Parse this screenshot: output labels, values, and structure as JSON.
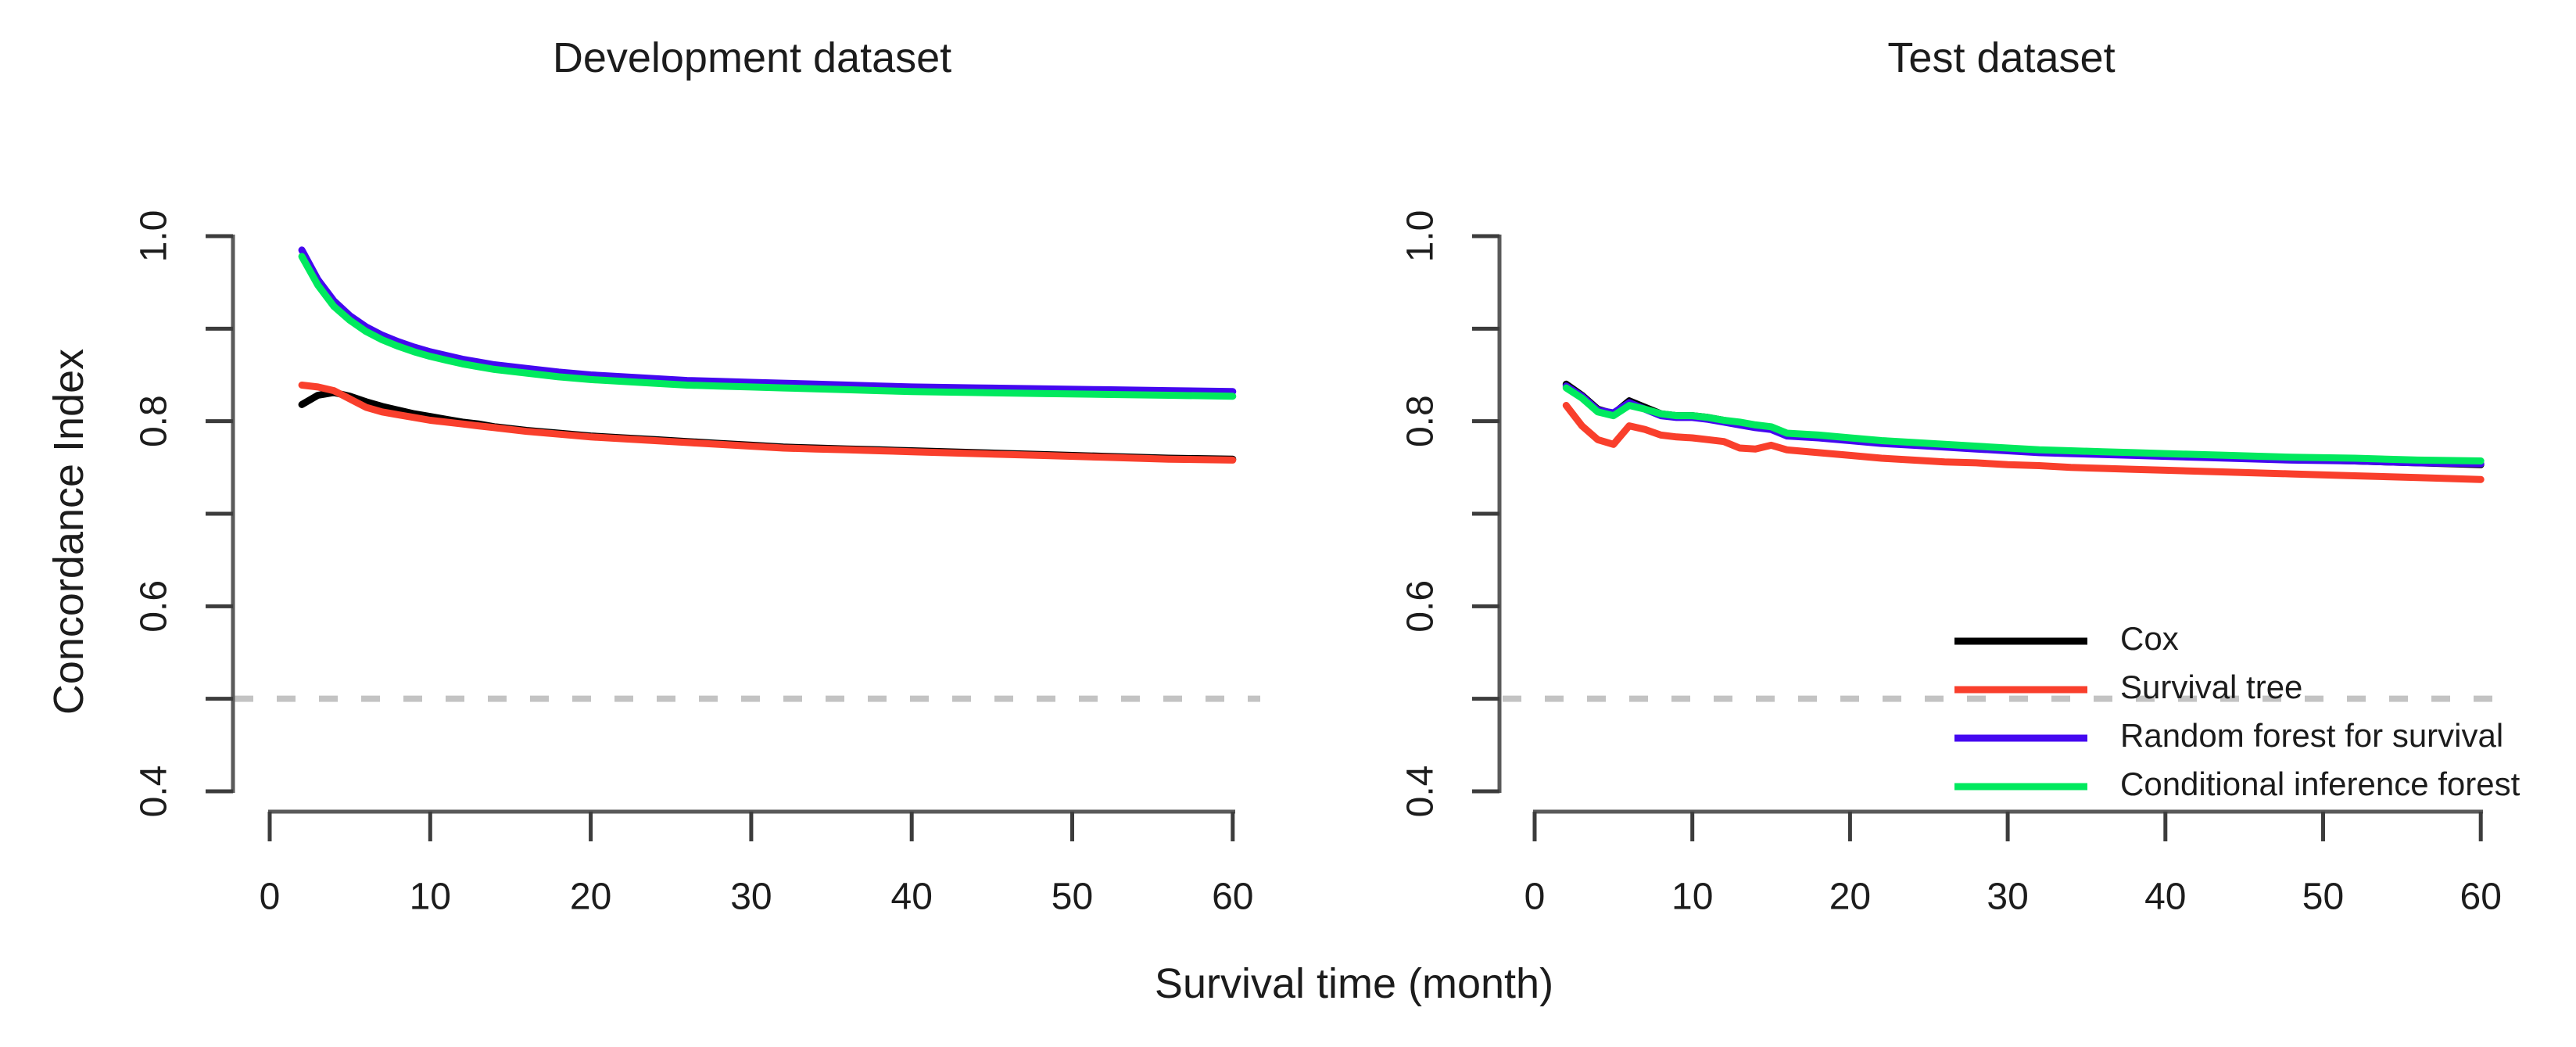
{
  "colors": {
    "background": "#ffffff",
    "text": "#1c1c1c",
    "axis": "#5a5a5a",
    "tick": "#3c3c3c",
    "reference": "#c3c3c3"
  },
  "titles": {
    "left": "Development dataset",
    "right": "Test dataset"
  },
  "axis_labels": {
    "x": "Survival time (month)",
    "y": "Concordance Index"
  },
  "legend": {
    "position": "bottom-right-of-test-panel",
    "items": [
      {
        "label": "Cox",
        "color": "#000000"
      },
      {
        "label": "Survival tree",
        "color": "#f93f2c"
      },
      {
        "label": "Random forest for survival",
        "color": "#4408f0"
      },
      {
        "label": "Conditional inference forest",
        "color": "#00e95e"
      }
    ]
  },
  "chart_data": [
    {
      "type": "line",
      "title": "Development dataset",
      "xlabel": "Survival time (month)",
      "ylabel": "Concordance Index",
      "xlim": [
        0,
        60
      ],
      "ylim": [
        0.4,
        1.0
      ],
      "x_ticks": [
        0,
        10,
        20,
        30,
        40,
        50,
        60
      ],
      "y_ticks": [
        0.4,
        0.5,
        0.6,
        0.7,
        0.8,
        0.9,
        1.0
      ],
      "y_tick_labels": [
        0.4,
        0.6,
        0.8,
        1.0
      ],
      "grid": false,
      "legend_shown": false,
      "reference_line": {
        "y": 0.5,
        "style": "dashed",
        "color": "#c3c3c3"
      },
      "x": [
        2,
        3,
        4,
        5,
        6,
        7,
        8,
        9,
        10,
        11,
        12,
        13,
        14,
        15,
        16,
        18,
        20,
        22,
        24,
        26,
        28,
        30,
        32,
        34,
        36,
        38,
        40,
        44,
        48,
        52,
        56,
        60
      ],
      "series": [
        {
          "name": "Cox",
          "color": "#000000",
          "values": [
            0.818,
            0.828,
            0.831,
            0.827,
            0.821,
            0.816,
            0.812,
            0.808,
            0.805,
            0.802,
            0.799,
            0.797,
            0.794,
            0.792,
            0.79,
            0.787,
            0.784,
            0.782,
            0.78,
            0.778,
            0.776,
            0.774,
            0.772,
            0.771,
            0.77,
            0.769,
            0.768,
            0.766,
            0.764,
            0.762,
            0.76,
            0.759
          ]
        },
        {
          "name": "Survival tree",
          "color": "#f93f2c",
          "values": [
            0.839,
            0.837,
            0.833,
            0.824,
            0.815,
            0.81,
            0.807,
            0.804,
            0.801,
            0.799,
            0.797,
            0.795,
            0.793,
            0.791,
            0.789,
            0.786,
            0.783,
            0.781,
            0.779,
            0.777,
            0.775,
            0.773,
            0.771,
            0.77,
            0.769,
            0.768,
            0.767,
            0.765,
            0.763,
            0.761,
            0.759,
            0.758
          ]
        },
        {
          "name": "Random forest for survival",
          "color": "#4408f0",
          "values": [
            0.985,
            0.953,
            0.93,
            0.914,
            0.902,
            0.893,
            0.886,
            0.88,
            0.875,
            0.871,
            0.867,
            0.864,
            0.861,
            0.859,
            0.857,
            0.853,
            0.85,
            0.848,
            0.846,
            0.844,
            0.843,
            0.842,
            0.841,
            0.84,
            0.839,
            0.838,
            0.837,
            0.836,
            0.835,
            0.834,
            0.833,
            0.832
          ]
        },
        {
          "name": "Conditional inference forest",
          "color": "#00e95e",
          "values": [
            0.978,
            0.947,
            0.924,
            0.909,
            0.897,
            0.888,
            0.881,
            0.875,
            0.87,
            0.866,
            0.862,
            0.859,
            0.856,
            0.854,
            0.852,
            0.848,
            0.845,
            0.843,
            0.841,
            0.839,
            0.838,
            0.837,
            0.836,
            0.835,
            0.834,
            0.833,
            0.832,
            0.831,
            0.83,
            0.829,
            0.828,
            0.827
          ]
        }
      ]
    },
    {
      "type": "line",
      "title": "Test dataset",
      "xlabel": "Survival time (month)",
      "ylabel": "Concordance Index",
      "xlim": [
        0,
        60
      ],
      "ylim": [
        0.4,
        1.0
      ],
      "x_ticks": [
        0,
        10,
        20,
        30,
        40,
        50,
        60
      ],
      "y_ticks": [
        0.4,
        0.5,
        0.6,
        0.7,
        0.8,
        0.9,
        1.0
      ],
      "y_tick_labels": [
        0.4,
        0.6,
        0.8,
        1.0
      ],
      "grid": false,
      "legend_shown": true,
      "reference_line": {
        "y": 0.5,
        "style": "dashed",
        "color": "#c3c3c3"
      },
      "x": [
        2,
        3,
        4,
        5,
        6,
        7,
        8,
        9,
        10,
        11,
        12,
        13,
        14,
        15,
        16,
        18,
        20,
        22,
        24,
        26,
        28,
        30,
        32,
        34,
        36,
        38,
        40,
        44,
        48,
        52,
        56,
        60
      ],
      "series": [
        {
          "name": "Cox",
          "color": "#000000",
          "values": [
            0.84,
            0.828,
            0.813,
            0.808,
            0.822,
            0.815,
            0.808,
            0.806,
            0.806,
            0.804,
            0.801,
            0.798,
            0.795,
            0.793,
            0.786,
            0.784,
            0.781,
            0.778,
            0.776,
            0.773,
            0.771,
            0.77,
            0.768,
            0.767,
            0.766,
            0.764,
            0.763,
            0.761,
            0.759,
            0.757,
            0.755,
            0.753
          ]
        },
        {
          "name": "Survival tree",
          "color": "#f93f2c",
          "values": [
            0.817,
            0.795,
            0.78,
            0.775,
            0.795,
            0.791,
            0.785,
            0.783,
            0.782,
            0.78,
            0.778,
            0.771,
            0.77,
            0.774,
            0.769,
            0.766,
            0.763,
            0.76,
            0.758,
            0.756,
            0.755,
            0.753,
            0.752,
            0.75,
            0.749,
            0.748,
            0.747,
            0.745,
            0.743,
            0.741,
            0.739,
            0.737
          ]
        },
        {
          "name": "Random forest for survival",
          "color": "#4408f0",
          "values": [
            0.838,
            0.827,
            0.812,
            0.809,
            0.82,
            0.813,
            0.806,
            0.804,
            0.804,
            0.802,
            0.799,
            0.796,
            0.793,
            0.791,
            0.784,
            0.782,
            0.779,
            0.776,
            0.774,
            0.772,
            0.77,
            0.768,
            0.766,
            0.765,
            0.764,
            0.763,
            0.762,
            0.76,
            0.758,
            0.757,
            0.755,
            0.754
          ]
        },
        {
          "name": "Conditional inference forest",
          "color": "#00e95e",
          "values": [
            0.836,
            0.825,
            0.81,
            0.806,
            0.817,
            0.813,
            0.808,
            0.806,
            0.806,
            0.804,
            0.801,
            0.799,
            0.796,
            0.794,
            0.787,
            0.785,
            0.782,
            0.779,
            0.777,
            0.775,
            0.773,
            0.771,
            0.769,
            0.768,
            0.767,
            0.766,
            0.765,
            0.763,
            0.761,
            0.76,
            0.758,
            0.757
          ]
        }
      ]
    }
  ]
}
